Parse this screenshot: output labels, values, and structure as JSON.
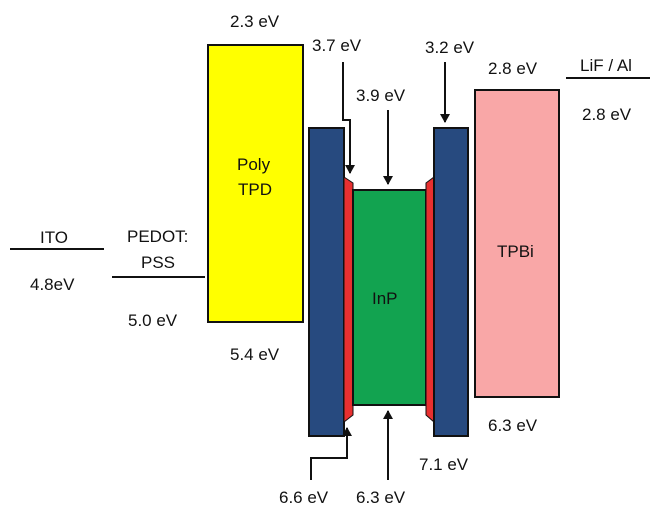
{
  "labels": {
    "ito_name": "ITO",
    "ito_level": "4.8eV",
    "pedot_line1": "PEDOT:",
    "pedot_line2": "PSS",
    "pedot_level": "5.0 eV",
    "polytpd_top": "2.3 eV",
    "polytpd_bottom": "5.4 eV",
    "polytpd_name_line1": "Poly",
    "polytpd_name_line2": "TPD",
    "shell_left_top": "3.7 eV",
    "core_top": "3.9 eV",
    "shell_right_top": "3.2 eV",
    "inp_name": "InP",
    "shell_left_bottom": "6.6 eV",
    "core_bottom": "6.3 eV",
    "shell_right_bottom": "7.1 eV",
    "tpbi_name": "TPBi",
    "tpbi_top": "2.8 eV",
    "tpbi_bottom": "6.3 eV",
    "lif_name": "LiF / Al",
    "lif_level": "2.8 eV"
  },
  "colors": {
    "polytpd": "#ffff00",
    "shell": "#274a7f",
    "interface": "#e83030",
    "inp": "#12a350",
    "tpbi": "#f9a7a7",
    "outline": "#111111"
  }
}
